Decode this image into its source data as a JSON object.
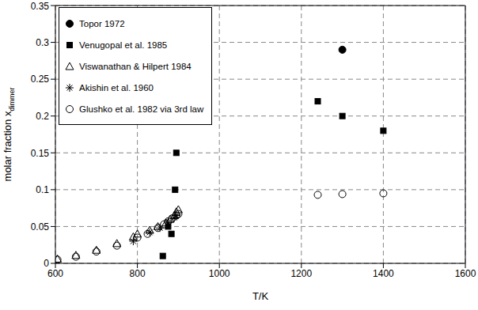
{
  "chart_data": {
    "type": "scatter",
    "x_label": "T/K",
    "y_label": "molar fraction x",
    "y_label_subscript": "dimmer",
    "xlim": [
      600,
      1600
    ],
    "xticks": [
      600,
      800,
      1000,
      1200,
      1400,
      1600
    ],
    "ylim": [
      0,
      0.35
    ],
    "yticks": [
      0,
      0.05,
      0.1,
      0.15,
      0.2,
      0.25,
      0.3,
      0.35
    ],
    "grid": true,
    "legend": "upper left",
    "series": [
      {
        "name": "Topor 1972",
        "color": "#000000",
        "marker": "filled_circle",
        "x": [
          1300
        ],
        "values": [
          0.29
        ]
      },
      {
        "name": "Venugopal et al. 1985",
        "color": "#000000",
        "marker": "filled_square",
        "x": [
          862,
          875,
          883,
          892,
          895,
          1240,
          1300,
          1400
        ],
        "values": [
          0.01,
          0.05,
          0.04,
          0.1,
          0.15,
          0.22,
          0.2,
          0.18
        ]
      },
      {
        "name": "Viswanathan & Hilpert 1984",
        "color": "#000000",
        "marker": "open_triangle",
        "x": [
          605,
          650,
          700,
          750,
          790,
          800,
          830,
          850,
          870,
          880,
          890,
          895,
          900
        ],
        "values": [
          0.006,
          0.011,
          0.018,
          0.027,
          0.036,
          0.04,
          0.045,
          0.05,
          0.055,
          0.06,
          0.065,
          0.07,
          0.073
        ]
      },
      {
        "name": "Akishin et al. 1960",
        "color": "#000000",
        "marker": "asterisk",
        "x": [
          790,
          830,
          855,
          875,
          890,
          895
        ],
        "values": [
          0.03,
          0.042,
          0.048,
          0.055,
          0.062,
          0.065
        ]
      },
      {
        "name": "Glushko et al. 1982 via 3rd law",
        "color": "#000000",
        "marker": "open_circle",
        "x": [
          605,
          650,
          700,
          750,
          800,
          825,
          850,
          865,
          875,
          885,
          895,
          900,
          1240,
          1300,
          1400
        ],
        "values": [
          0.005,
          0.009,
          0.016,
          0.024,
          0.035,
          0.04,
          0.048,
          0.053,
          0.057,
          0.061,
          0.065,
          0.067,
          0.093,
          0.094,
          0.095
        ]
      }
    ]
  }
}
